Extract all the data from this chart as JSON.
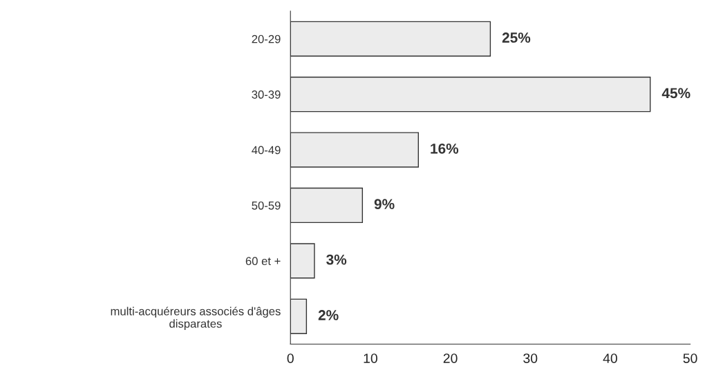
{
  "chart_data": {
    "type": "bar",
    "orientation": "horizontal",
    "categories": [
      "20-29",
      "30-39",
      "40-49",
      "50-59",
      "60 et +",
      "multi-acquéreurs associés d'âges\ndisparates"
    ],
    "values": [
      25,
      45,
      16,
      9,
      3,
      2
    ],
    "value_labels": [
      "25%",
      "45%",
      "16%",
      "9%",
      "3%",
      "2%"
    ],
    "color": "#ececec",
    "xlim": [
      0,
      50
    ],
    "xticks": [
      0,
      10,
      20,
      30,
      40,
      50
    ],
    "grid": false,
    "legend": false
  }
}
